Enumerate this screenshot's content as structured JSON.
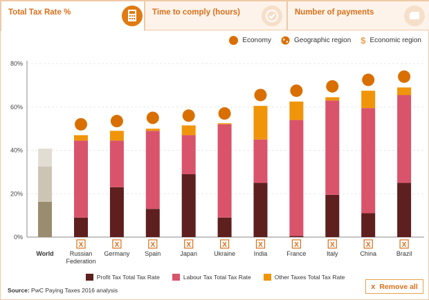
{
  "tabs": [
    {
      "label": "Total Tax Rate %",
      "icon": "calculator-icon",
      "active": true
    },
    {
      "label": "Time to comply (hours)",
      "icon": "clock-icon",
      "active": false
    },
    {
      "label": "Number of payments",
      "icon": "payments-icon",
      "active": false
    }
  ],
  "legend_top": {
    "economy": "Economy",
    "geographic_region": "Geographic region",
    "economic_region": "Economic region",
    "dollar_symbol": "$"
  },
  "legend_bottom": {
    "profit": "Profit Tax Total Tax Rate",
    "labour": "Labour Tax Total Tax Rate",
    "other": "Other Taxes Total Tax Rate"
  },
  "source": {
    "label": "Source:",
    "text": "PwC Paying Taxes 2016 analysis"
  },
  "remove_all": {
    "icon_glyph": "x",
    "label": "Remove all"
  },
  "remove_glyph": "X",
  "colors": {
    "profit": "#5e1f1f",
    "labour": "#d9546b",
    "other": "#f0950a",
    "economy_dot": "#d96f00",
    "world_profit": "#9a8c6e",
    "world_labour": "#cdc5b4",
    "world_other": "#e2ddd3",
    "accent": "#d96f1a"
  },
  "chart_data": {
    "type": "bar",
    "stacked": true,
    "categories": [
      "World",
      "Russian Federation",
      "Germany",
      "Spain",
      "Japan",
      "Ukraine",
      "India",
      "France",
      "Italy",
      "China",
      "Brazil"
    ],
    "y_ticks": [
      "0%",
      "20%",
      "40%",
      "60%",
      "80%"
    ],
    "ylim": [
      0,
      80
    ],
    "series": [
      {
        "name": "Profit Tax Total Tax Rate",
        "values": [
          16.3,
          9.0,
          23.0,
          13.0,
          29.0,
          9.0,
          25.0,
          0.5,
          19.5,
          11.0,
          25.0
        ]
      },
      {
        "name": "Labour Tax Total Tax Rate",
        "values": [
          16.3,
          35.5,
          21.5,
          36.0,
          18.0,
          43.0,
          20.0,
          53.5,
          43.5,
          48.5,
          40.5
        ]
      },
      {
        "name": "Other Taxes Total Tax Rate",
        "values": [
          8.2,
          2.5,
          4.5,
          1.0,
          4.5,
          0.5,
          15.5,
          8.5,
          1.5,
          8.0,
          3.5
        ]
      }
    ],
    "totals": [
      40.8,
      47.0,
      49.0,
      50.0,
      51.5,
      52.5,
      60.5,
      62.5,
      64.5,
      67.5,
      69.0
    ],
    "economy_markers": [
      null,
      52.0,
      53.5,
      55.0,
      56.0,
      57.0,
      65.5,
      67.5,
      69.5,
      72.5,
      74.0
    ],
    "grid": true
  }
}
